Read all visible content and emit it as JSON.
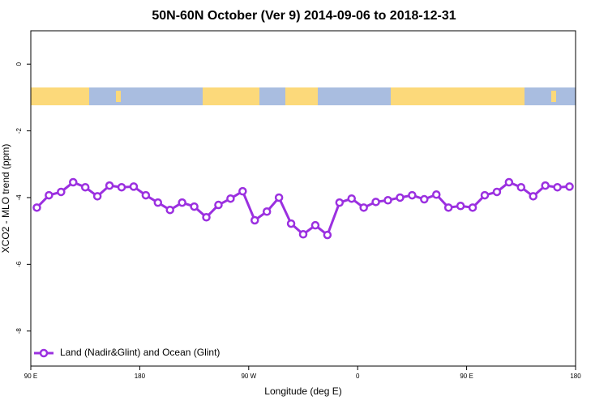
{
  "chart_data": {
    "type": "line",
    "title": "50N-60N October (Ver 9)   2014-09-06 to 2018-12-31",
    "x_label": "Longitude (deg E)",
    "y_label": "XCO2 - MLO trend (ppm)",
    "x": [
      95,
      105,
      115,
      125,
      135,
      145,
      155,
      165,
      175,
      185,
      195,
      205,
      215,
      225,
      235,
      245,
      255,
      265,
      275,
      285,
      295,
      305,
      315,
      325,
      335,
      345,
      355,
      365,
      375,
      385,
      395,
      405,
      415,
      425,
      435,
      445,
      455,
      465,
      475,
      485,
      495,
      505,
      515,
      525,
      535
    ],
    "series": [
      {
        "name": "Land (Nadir&Glint) and Ocean (Glint)",
        "color": "#9b30e0",
        "values": [
          -4.3,
          -3.93,
          -3.83,
          -3.54,
          -3.69,
          -3.96,
          -3.64,
          -3.69,
          -3.67,
          -3.93,
          -4.15,
          -4.37,
          -4.15,
          -4.27,
          -4.59,
          -4.22,
          -4.03,
          -3.81,
          -4.68,
          -4.42,
          -4.0,
          -4.78,
          -5.1,
          -4.83,
          -5.12,
          -4.15,
          -4.03,
          -4.3,
          -4.13,
          -4.08,
          -4.0,
          -3.93,
          -4.05,
          -3.91,
          -4.3,
          -4.25,
          -4.3,
          -3.93,
          -3.83,
          -3.54,
          -3.69,
          -3.96,
          -3.64,
          -3.69,
          -3.67
        ]
      }
    ],
    "xlim": [
      90,
      540
    ],
    "xticks": [
      {
        "value": 90,
        "label": "90 E"
      },
      180,
      {
        "value": 270,
        "label": "90 W"
      },
      {
        "value": 360,
        "label": "0"
      },
      {
        "value": 450,
        "label": "90 E"
      },
      {
        "value": 540,
        "label": "180"
      }
    ],
    "ylim": [
      -9.05,
      1.0
    ],
    "yticks": [
      0,
      -2,
      -4,
      -6,
      -8
    ],
    "legend": "bottom-left"
  }
}
